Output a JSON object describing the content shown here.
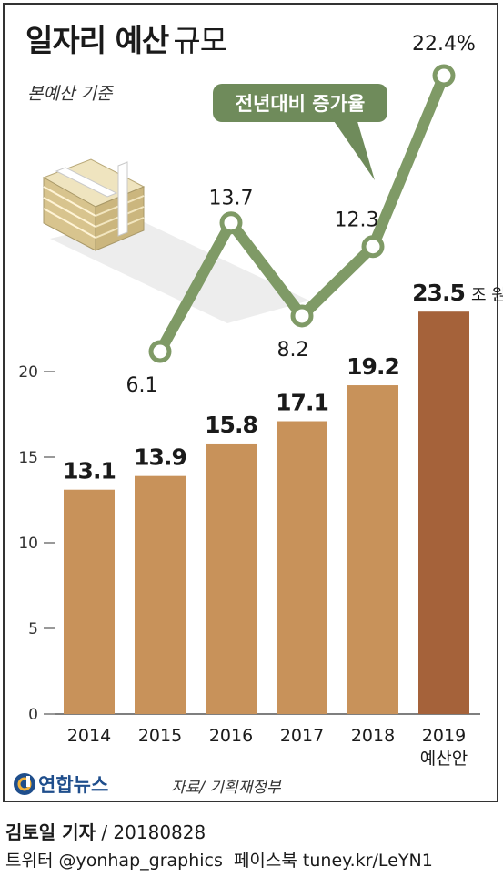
{
  "title_bold": "일자리 예산",
  "title_light": "규모",
  "subtitle": "본예산 기준",
  "logo_text": "연합뉴스",
  "source": "자료/ 기획재정부",
  "footer": {
    "byline": "김토일 기자",
    "separator": " / ",
    "date": "20180828",
    "social": "트위터 @yonhap_graphics  페이스북 tuney.kr/LeYN1"
  },
  "colors": {
    "bar": "#c8925a",
    "bar_highlight": "#a5623a",
    "line": "#7f9a66",
    "bubble": "#6f8b5b"
  },
  "chart_data": [
    {
      "type": "bar",
      "categories": [
        "2014",
        "2015",
        "2016",
        "2017",
        "2018",
        "2019\n예산안"
      ],
      "values": [
        13.1,
        13.9,
        15.8,
        17.1,
        19.2,
        23.5
      ],
      "value_labels": [
        "13.1",
        "13.9",
        "15.8",
        "17.1",
        "19.2",
        "23.5"
      ],
      "unit_label": "조 원",
      "yticks": [
        0,
        5,
        10,
        15,
        20
      ],
      "ylim": [
        0,
        25
      ],
      "grid": false
    },
    {
      "type": "line",
      "name": "전년대비 증가율",
      "categories": [
        "2015",
        "2016",
        "2017",
        "2018",
        "2019"
      ],
      "values": [
        6.1,
        13.7,
        8.2,
        12.3,
        22.4
      ],
      "value_labels": [
        "6.1",
        "13.7",
        "8.2",
        "12.3",
        "22.4%"
      ]
    }
  ]
}
